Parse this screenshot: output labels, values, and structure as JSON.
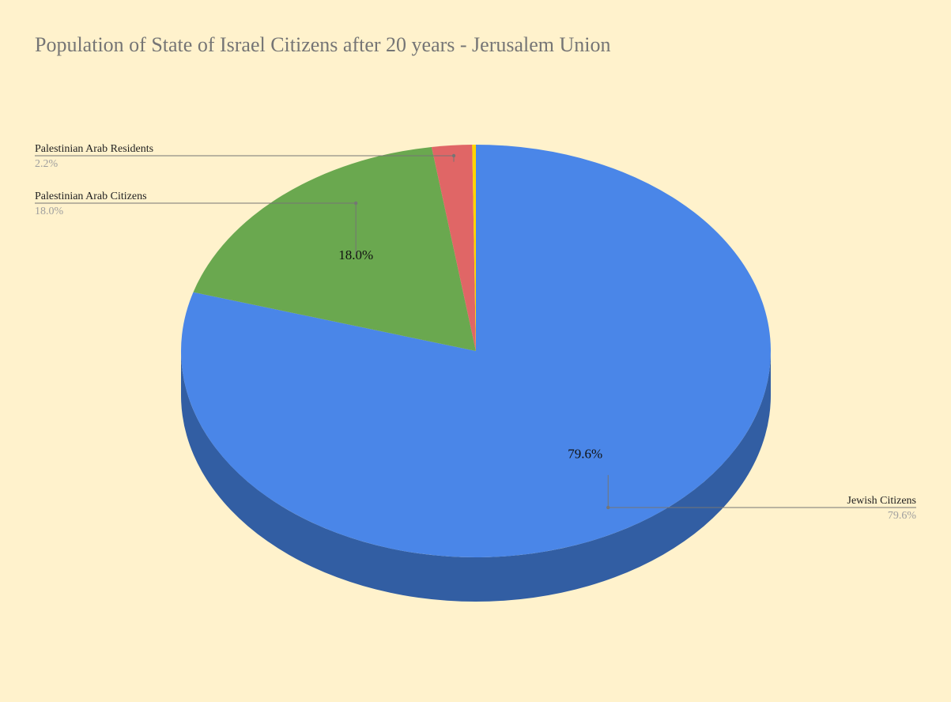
{
  "chart_data": {
    "type": "pie",
    "style": "3d",
    "title": "Population of State of Israel Citizens after 20 years - Jerusalem Union",
    "legend": "none",
    "start_angle_deg": 0,
    "direction": "clockwise",
    "slices": [
      {
        "label": "Jewish Citizens",
        "value": 79.6,
        "display": "79.6%",
        "color": "#4a86e8",
        "side_color": "#325ea3",
        "data_label": "79.6%"
      },
      {
        "label": "Palestinian Arab Citizens",
        "value": 18.0,
        "display": "18.0%",
        "color": "#6aa84f",
        "side_color": "#4a7637",
        "data_label": "18.0%"
      },
      {
        "label": "Palestinian Arab Residents",
        "value": 2.2,
        "display": "2.2%",
        "color": "#e06666",
        "side_color": "#9d4747",
        "data_label": ""
      },
      {
        "label": "",
        "value": 0.2,
        "display": "",
        "color": "#ffd400",
        "side_color": "#b39400",
        "data_label": ""
      }
    ]
  }
}
